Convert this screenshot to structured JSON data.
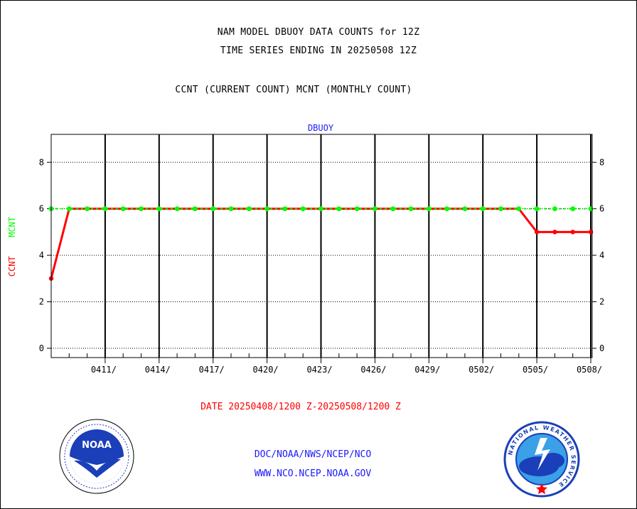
{
  "header": {
    "line1": "NAM MODEL DBUOY DATA COUNTS for 12Z",
    "line2": "TIME SERIES ENDING IN 20250508 12Z",
    "line3": "CCNT (CURRENT COUNT) MCNT (MONTHLY COUNT)"
  },
  "footer": {
    "line1": "DOC/NOAA/NWS/NCEP/NCO",
    "line2": "WWW.NCO.NCEP.NOAA.GOV"
  },
  "logos": {
    "noaa_text": "NOAA",
    "nws_text": "NATIONAL WEATHER SERVICE"
  },
  "colors": {
    "ccnt": "#ff0000",
    "mcnt": "#00ff00",
    "axis": "#000000",
    "plot_title": "#1a1aff"
  },
  "chart_data": {
    "type": "line",
    "title": "DBUOY",
    "xlabel": "DATE 20250408/1200 Z-20250508/1200 Z",
    "ylabel_ccnt": "CCNT",
    "ylabel_mcnt": "MCNT",
    "ylim": [
      -0.4,
      9.2
    ],
    "yticks": [
      0,
      2,
      4,
      6,
      8
    ],
    "grid": true,
    "x_days": [
      "0408",
      "0409",
      "0410",
      "0411",
      "0412",
      "0413",
      "0414",
      "0415",
      "0416",
      "0417",
      "0418",
      "0419",
      "0420",
      "0421",
      "0422",
      "0423",
      "0424",
      "0425",
      "0426",
      "0427",
      "0428",
      "0429",
      "0430",
      "0501",
      "0502",
      "0503",
      "0504",
      "0505",
      "0506",
      "0507",
      "0508"
    ],
    "xticks": [
      "0411/",
      "0414/",
      "0417/",
      "0420/",
      "0423/",
      "0426/",
      "0429/",
      "0502/",
      "0505/",
      "0508/"
    ],
    "series": [
      {
        "name": "CCNT",
        "color": "#ff0000",
        "values": [
          3,
          6,
          6,
          6,
          6,
          6,
          6,
          6,
          6,
          6,
          6,
          6,
          6,
          6,
          6,
          6,
          6,
          6,
          6,
          6,
          6,
          6,
          6,
          6,
          6,
          6,
          6,
          5,
          5,
          5,
          5
        ]
      },
      {
        "name": "MCNT",
        "color": "#00ff00",
        "values": [
          6,
          6,
          6,
          6,
          6,
          6,
          6,
          6,
          6,
          6,
          6,
          6,
          6,
          6,
          6,
          6,
          6,
          6,
          6,
          6,
          6,
          6,
          6,
          6,
          6,
          6,
          6,
          6,
          6,
          6,
          6
        ]
      }
    ]
  }
}
